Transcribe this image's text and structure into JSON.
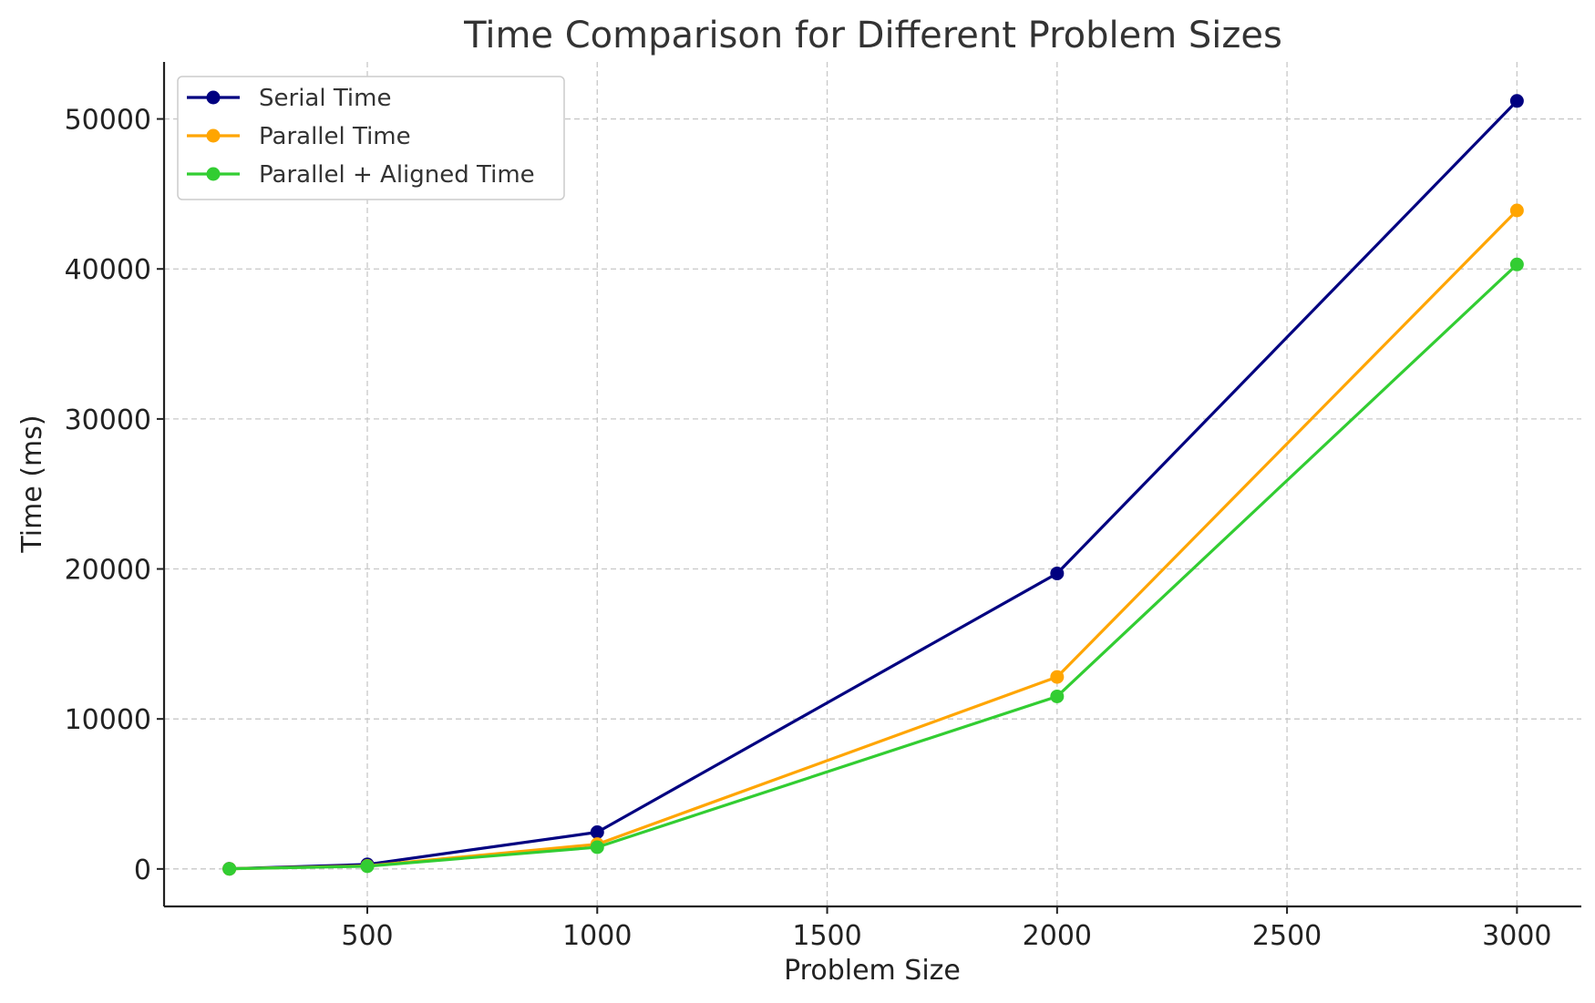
{
  "chart_data": {
    "type": "line",
    "title": "Time Comparison for Different Problem Sizes",
    "xlabel": "Problem Size",
    "ylabel": "Time (ms)",
    "x": [
      200,
      500,
      1000,
      2000,
      3000
    ],
    "xlim": [
      58,
      3140
    ],
    "ylim": [
      -2500,
      53800
    ],
    "xticks": [
      500,
      1000,
      1500,
      2000,
      2500,
      3000
    ],
    "yticks": [
      0,
      10000,
      20000,
      30000,
      40000,
      50000
    ],
    "grid": true,
    "legend_position": "top-left",
    "series": [
      {
        "name": "Serial Time",
        "color": "#000080",
        "values": [
          10,
          300,
          2450,
          19700,
          51200
        ]
      },
      {
        "name": "Parallel Time",
        "color": "#FFA500",
        "values": [
          8,
          200,
          1650,
          12800,
          43900
        ]
      },
      {
        "name": "Parallel + Aligned Time",
        "color": "#32CD32",
        "values": [
          6,
          180,
          1450,
          11500,
          40300
        ]
      }
    ]
  }
}
